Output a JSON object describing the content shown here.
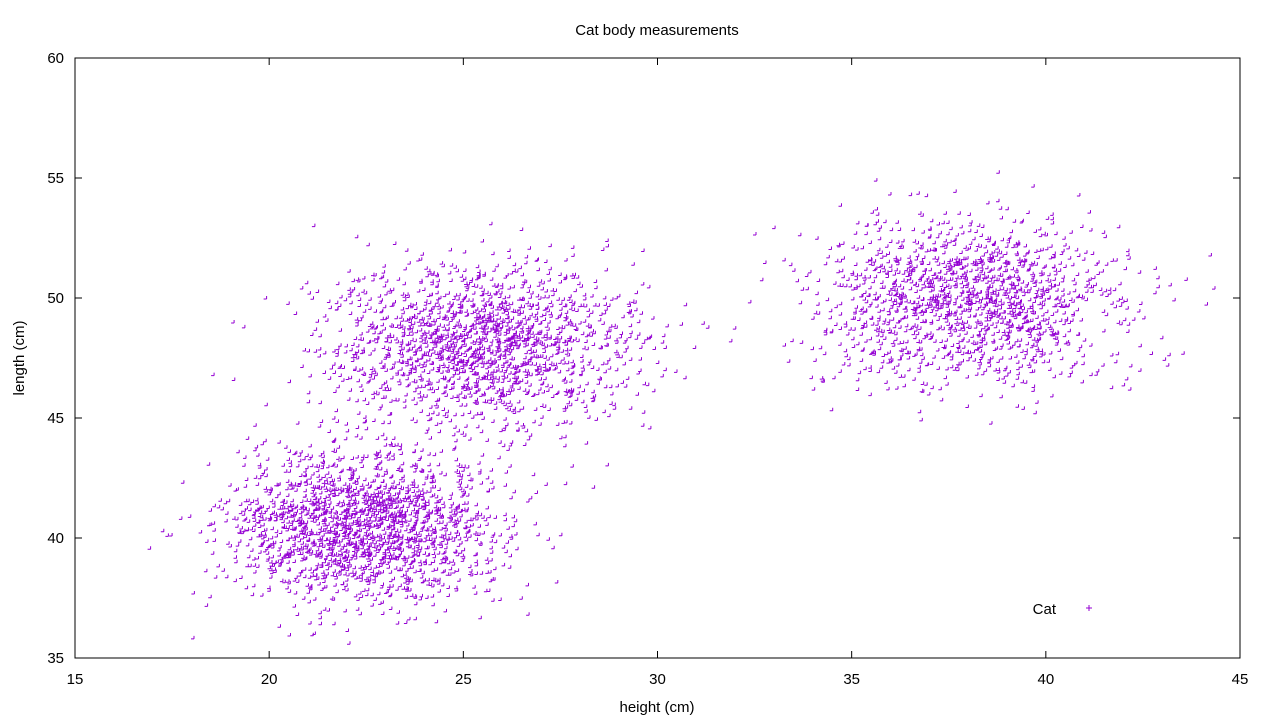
{
  "chart_data": {
    "type": "scatter",
    "title": "Cat body measurements",
    "xlabel": "height (cm)",
    "ylabel": "length (cm)",
    "xlim": [
      15,
      45
    ],
    "ylim": [
      35,
      60
    ],
    "xticks": [
      "15",
      "20",
      "25",
      "30",
      "35",
      "40",
      "45"
    ],
    "yticks": [
      "35",
      "40",
      "45",
      "50",
      "55",
      "60"
    ],
    "grid": false,
    "legend_position": "bottom-right",
    "marker": "plus",
    "series": [
      {
        "name": "Cat",
        "color": "#9400d3",
        "clusters": [
          {
            "center_x": 22.5,
            "center_y": 40.5,
            "spread_x": 1.7,
            "spread_y": 1.6,
            "count": 1900
          },
          {
            "center_x": 25.5,
            "center_y": 48.0,
            "spread_x": 1.9,
            "spread_y": 1.7,
            "count": 1700
          },
          {
            "center_x": 38.0,
            "center_y": 49.8,
            "spread_x": 2.0,
            "spread_y": 1.7,
            "count": 1500
          }
        ]
      }
    ]
  }
}
